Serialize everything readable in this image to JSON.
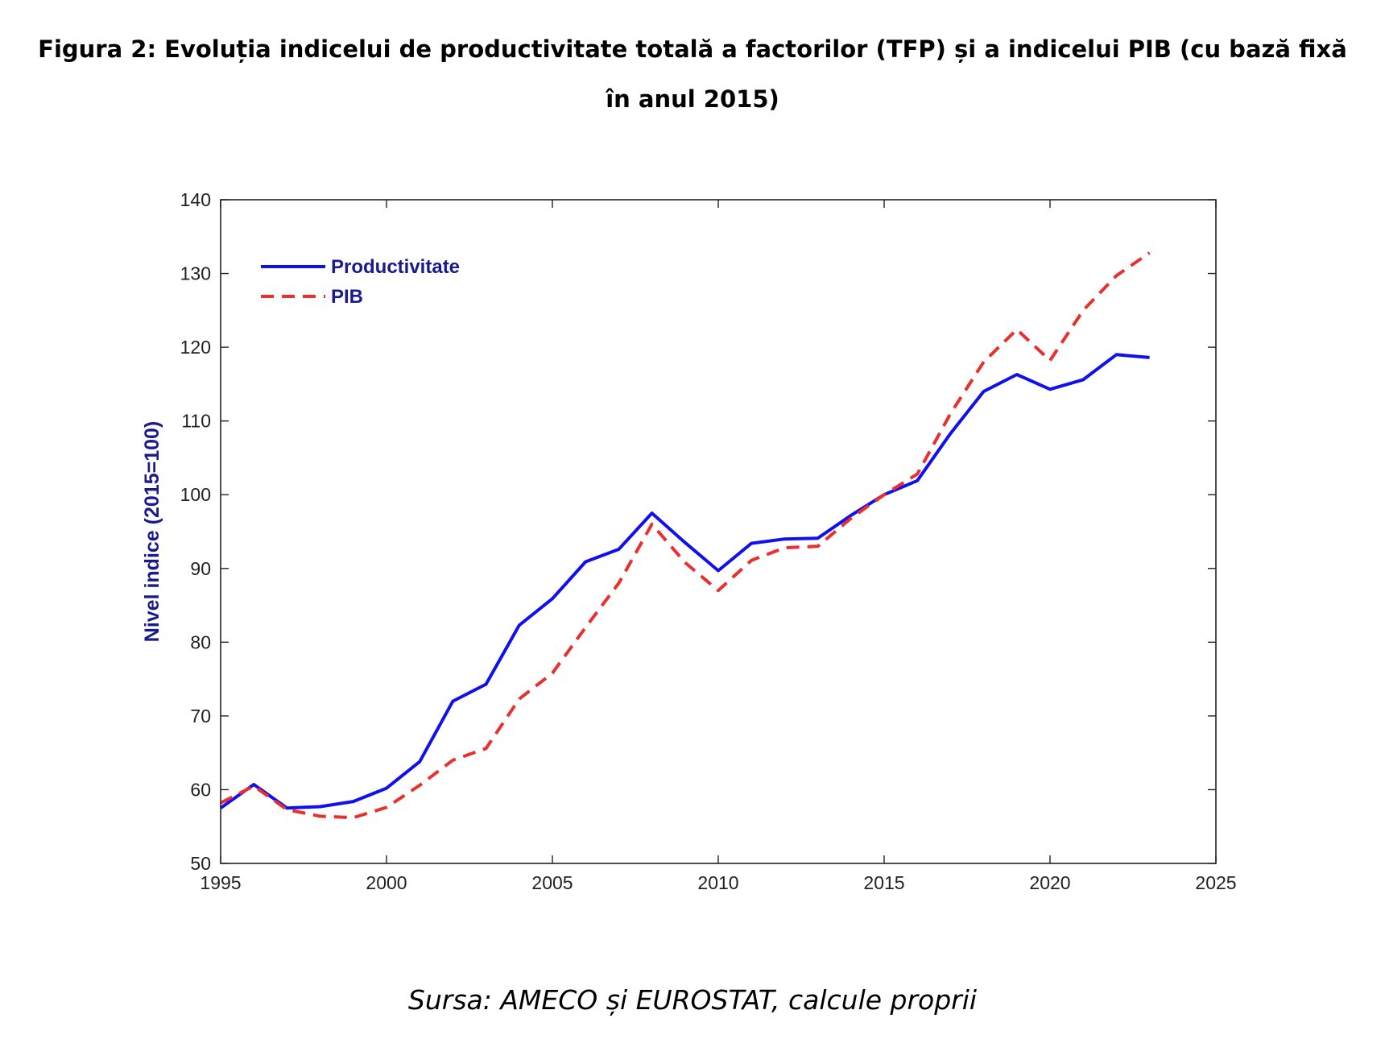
{
  "figure": {
    "title": "Figura 2: Evoluția indicelui de productivitate totală a factorilor (TFP) și a indicelui PIB (cu bază fixă în anul 2015)",
    "source": "Sursa: AMECO și EUROSTAT, calcule proprii"
  },
  "chart_data": {
    "type": "line",
    "title": "",
    "xlabel": "",
    "ylabel": "Nivel indice (2015=100)",
    "xlim": [
      1995,
      2025
    ],
    "ylim": [
      50,
      140
    ],
    "xticks": [
      1995,
      2000,
      2005,
      2010,
      2015,
      2020,
      2025
    ],
    "yticks": [
      50,
      60,
      70,
      80,
      90,
      100,
      110,
      120,
      130,
      140
    ],
    "grid": false,
    "legend_position": "top-left",
    "x": [
      1995,
      1996,
      1997,
      1998,
      1999,
      2000,
      2001,
      2002,
      2003,
      2004,
      2005,
      2006,
      2007,
      2008,
      2009,
      2010,
      2011,
      2012,
      2013,
      2014,
      2015,
      2016,
      2017,
      2018,
      2019,
      2020,
      2021,
      2022,
      2023
    ],
    "series": [
      {
        "name": "Productivitate",
        "color": "#1010ee",
        "style": "solid",
        "values": [
          57.5,
          60.7,
          57.5,
          57.7,
          58.4,
          60.2,
          63.8,
          72.0,
          74.3,
          82.3,
          85.9,
          90.9,
          92.6,
          97.5,
          93.5,
          89.7,
          93.4,
          94.0,
          94.1,
          97.2,
          100.0,
          101.9,
          108.3,
          114.0,
          116.3,
          114.3,
          115.6,
          119.0,
          118.6
        ]
      },
      {
        "name": "PIB",
        "color": "#e8302e",
        "style": "dashed",
        "values": [
          58.2,
          60.5,
          57.3,
          56.4,
          56.2,
          57.6,
          60.6,
          64.0,
          65.6,
          72.3,
          75.8,
          82.0,
          88.0,
          96.0,
          90.8,
          87.0,
          91.1,
          92.8,
          93.0,
          96.8,
          100.0,
          102.8,
          111.0,
          118.0,
          122.4,
          118.2,
          125.0,
          129.7,
          132.8
        ]
      }
    ]
  }
}
